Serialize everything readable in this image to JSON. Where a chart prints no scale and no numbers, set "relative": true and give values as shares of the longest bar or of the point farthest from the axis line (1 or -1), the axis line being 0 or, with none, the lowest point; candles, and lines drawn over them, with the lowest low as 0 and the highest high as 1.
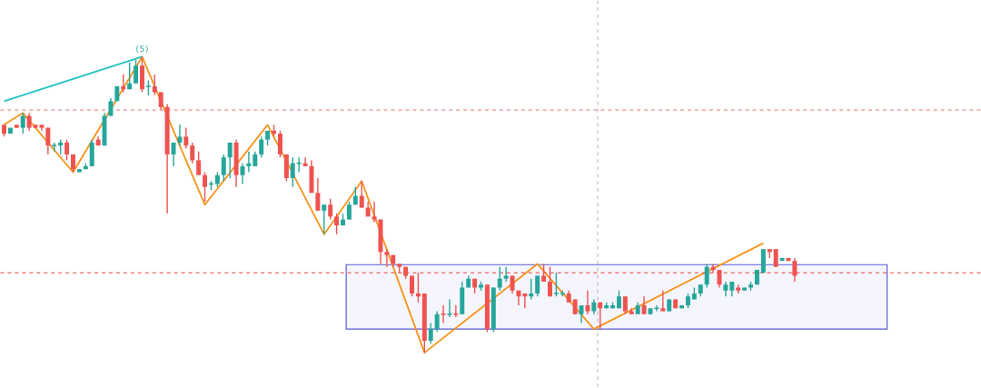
{
  "chart_data": [
    {
      "type": "candlestick",
      "relative": true,
      "categories": [
        null,
        null,
        null,
        null,
        null,
        null,
        null,
        null,
        null,
        null,
        null,
        null,
        null,
        null,
        null,
        null,
        null,
        null,
        null,
        null,
        null,
        null,
        null,
        null,
        null,
        null,
        null,
        null,
        null,
        null,
        null,
        null,
        null,
        null,
        null,
        null,
        null,
        null,
        null,
        null,
        null,
        null,
        null,
        null,
        null,
        null,
        null,
        null,
        null,
        null,
        null,
        null,
        null,
        null,
        null,
        null,
        null,
        null,
        null,
        null,
        null,
        null,
        null,
        null,
        null,
        null,
        null,
        null,
        null,
        null,
        null,
        null,
        null,
        null,
        null,
        null,
        null,
        null,
        null,
        null,
        null,
        null,
        null,
        null,
        null,
        null,
        null,
        null,
        null,
        null,
        null,
        null,
        null,
        null,
        null,
        null,
        null,
        null,
        null,
        null,
        null,
        null,
        null,
        null,
        null,
        null,
        null,
        null,
        null,
        null,
        null,
        null,
        null,
        null,
        null,
        null,
        null,
        null,
        null,
        null,
        null,
        null,
        null,
        null,
        null,
        null,
        null
      ],
      "colors": [
        "#ef5350",
        "#26a69a",
        "#ef5350",
        "#26a69a",
        "#ef5350",
        "#ef5350",
        "#ef5350",
        "#ef5350",
        "#26a69a",
        "#26a69a",
        "#ef5350",
        "#ef5350",
        "#26a69a",
        "#26a69a",
        "#26a69a",
        "#ef5350",
        "#26a69a",
        "#26a69a",
        "#26a69a",
        "#ef5350",
        "#26a69a",
        "#26a69a",
        "#ef5350",
        "#26a69a",
        "#ef5350",
        "#ef5350",
        "#ef5350",
        "#26a69a",
        "#26a69a",
        "#ef5350",
        "#ef5350",
        "#ef5350",
        "#ef5350",
        "#26a69a",
        "#26a69a",
        "#26a69a",
        "#26a69a",
        "#ef5350",
        "#26a69a",
        "#26a69a",
        "#26a69a",
        "#26a69a",
        "#26a69a",
        "#ef5350",
        "#ef5350",
        "#ef5350",
        "#26a69a",
        "#26a69a",
        "#ef5350",
        "#ef5350",
        "#ef5350",
        "#26a69a",
        "#ef5350",
        "#ef5350",
        "#26a69a",
        "#26a69a",
        "#26a69a",
        "#ef5350",
        "#ef5350",
        "#ef5350",
        "#ef5350",
        "#ef5350",
        "#ef5350",
        "#ef5350",
        "#ef5350",
        "#ef5350",
        "#ef5350",
        "#ef5350",
        "#26a69a",
        "#26a69a",
        "#ef5350",
        "#26a69a",
        "#ef5350",
        "#26a69a",
        "#26a69a",
        "#ef5350",
        "#26a69a",
        "#ef5350",
        "#26a69a",
        "#26a69a",
        "#26a69a",
        "#ef5350",
        "#ef5350",
        "#ef5350",
        "#26a69a",
        "#26a69a",
        "#ef5350",
        "#ef5350",
        "#26a69a",
        "#26a69a",
        "#ef5350",
        "#ef5350",
        "#26a69a",
        "#ef5350",
        "#26a69a",
        "#ef5350",
        "#26a69a",
        "#26a69a",
        "#26a69a",
        "#ef5350",
        "#ef5350",
        "#26a69a",
        "#ef5350",
        "#26a69a",
        "#26a69a",
        "#ef5350",
        "#26a69a",
        "#ef5350",
        "#26a69a",
        "#26a69a",
        "#26a69a",
        "#26a69a",
        "#26a69a",
        "#ef5350",
        "#ef5350",
        "#26a69a",
        "#26a69a",
        "#ef5350",
        "#26a69a",
        "#26a69a",
        "#26a69a",
        "#26a69a",
        "#ef5350",
        "#ef5350",
        "#26a69a",
        "#ef5350",
        "#ef5350"
      ],
      "ohlc": [
        [
          0.77,
          0.77,
          0.73,
          0.74
        ],
        [
          0.74,
          0.76,
          0.74,
          0.76
        ],
        [
          0.77,
          0.77,
          0.76,
          0.76
        ],
        [
          0.76,
          0.81,
          0.74,
          0.8
        ],
        [
          0.8,
          0.81,
          0.75,
          0.76
        ],
        [
          0.77,
          0.77,
          0.76,
          0.76
        ],
        [
          0.77,
          0.77,
          0.75,
          0.76
        ],
        [
          0.76,
          0.76,
          0.67,
          0.7
        ],
        [
          0.7,
          0.71,
          0.68,
          0.7
        ],
        [
          0.7,
          0.72,
          0.67,
          0.71
        ],
        [
          0.71,
          0.72,
          0.65,
          0.67
        ],
        [
          0.67,
          0.67,
          0.61,
          0.62
        ],
        [
          0.61,
          0.62,
          0.61,
          0.62
        ],
        [
          0.62,
          0.64,
          0.62,
          0.63
        ],
        [
          0.63,
          0.72,
          0.63,
          0.71
        ],
        [
          0.72,
          0.73,
          0.7,
          0.7
        ],
        [
          0.7,
          0.81,
          0.7,
          0.8
        ],
        [
          0.8,
          0.86,
          0.8,
          0.85
        ],
        [
          0.85,
          0.9,
          0.85,
          0.9
        ],
        [
          0.9,
          0.94,
          0.88,
          0.89
        ],
        [
          0.89,
          0.98,
          0.89,
          0.91
        ],
        [
          0.91,
          0.99,
          0.91,
          0.97
        ],
        [
          0.97,
          1.0,
          0.88,
          0.89
        ],
        [
          0.9,
          0.92,
          0.87,
          0.9
        ],
        [
          0.9,
          0.94,
          0.87,
          0.88
        ],
        [
          0.88,
          0.88,
          0.82,
          0.83
        ],
        [
          0.83,
          0.84,
          0.47,
          0.67
        ],
        [
          0.67,
          0.71,
          0.63,
          0.71
        ],
        [
          0.71,
          0.77,
          0.7,
          0.73
        ],
        [
          0.73,
          0.76,
          0.69,
          0.7
        ],
        [
          0.7,
          0.71,
          0.64,
          0.65
        ],
        [
          0.65,
          0.68,
          0.6,
          0.6
        ],
        [
          0.6,
          0.61,
          0.51,
          0.56
        ],
        [
          0.57,
          0.58,
          0.55,
          0.57
        ],
        [
          0.57,
          0.61,
          0.56,
          0.6
        ],
        [
          0.6,
          0.67,
          0.58,
          0.66
        ],
        [
          0.66,
          0.71,
          0.59,
          0.71
        ],
        [
          0.71,
          0.72,
          0.56,
          0.6
        ],
        [
          0.6,
          0.64,
          0.57,
          0.63
        ],
        [
          0.63,
          0.68,
          0.61,
          0.64
        ],
        [
          0.63,
          0.68,
          0.63,
          0.67
        ],
        [
          0.67,
          0.73,
          0.66,
          0.72
        ],
        [
          0.72,
          0.75,
          0.7,
          0.75
        ],
        [
          0.75,
          0.77,
          0.73,
          0.74
        ],
        [
          0.74,
          0.75,
          0.66,
          0.67
        ],
        [
          0.67,
          0.67,
          0.58,
          0.59
        ],
        [
          0.59,
          0.66,
          0.56,
          0.64
        ],
        [
          0.64,
          0.66,
          0.61,
          0.64
        ],
        [
          0.64,
          0.66,
          0.63,
          0.63
        ],
        [
          0.63,
          0.65,
          0.54,
          0.54
        ],
        [
          0.54,
          0.59,
          0.48,
          0.48
        ],
        [
          0.48,
          0.5,
          0.4,
          0.5
        ],
        [
          0.5,
          0.52,
          0.45,
          0.46
        ],
        [
          0.46,
          0.47,
          0.4,
          0.43
        ],
        [
          0.43,
          0.47,
          0.43,
          0.45
        ],
        [
          0.45,
          0.51,
          0.45,
          0.5
        ],
        [
          0.5,
          0.56,
          0.5,
          0.53
        ],
        [
          0.53,
          0.58,
          0.49,
          0.49
        ],
        [
          0.49,
          0.51,
          0.46,
          0.46
        ],
        [
          0.46,
          0.51,
          0.44,
          0.45
        ],
        [
          0.45,
          0.45,
          0.3,
          0.34
        ],
        [
          0.34,
          0.35,
          0.29,
          0.33
        ],
        [
          0.33,
          0.33,
          0.29,
          0.3
        ],
        [
          0.3,
          0.3,
          0.27,
          0.29
        ],
        [
          0.29,
          0.29,
          0.25,
          0.26
        ],
        [
          0.26,
          0.26,
          0.19,
          0.2
        ],
        [
          0.2,
          0.27,
          0.17,
          0.19
        ],
        [
          0.2,
          0.2,
          0,
          0.04
        ],
        [
          0.04,
          0.1,
          0.03,
          0.08
        ],
        [
          0.08,
          0.14,
          0.07,
          0.13
        ],
        [
          0.13,
          0.16,
          0.1,
          0.13
        ],
        [
          0.13,
          0.18,
          0.12,
          0.13
        ],
        [
          0.13,
          0.16,
          0.12,
          0.13
        ],
        [
          0.13,
          0.24,
          0.13,
          0.22
        ],
        [
          0.22,
          0.26,
          0.22,
          0.25
        ],
        [
          0.25,
          0.25,
          0.2,
          0.22
        ],
        [
          0.22,
          0.24,
          0.21,
          0.23
        ],
        [
          0.23,
          0.23,
          0.07,
          0.08
        ],
        [
          0.08,
          0.22,
          0.07,
          0.22
        ],
        [
          0.22,
          0.29,
          0.21,
          0.25
        ],
        [
          0.25,
          0.29,
          0.24,
          0.26
        ],
        [
          0.26,
          0.26,
          0.2,
          0.21
        ],
        [
          0.21,
          0.21,
          0.16,
          0.19
        ],
        [
          0.2,
          0.2,
          0.15,
          0.19
        ],
        [
          0.19,
          0.25,
          0.18,
          0.2
        ],
        [
          0.2,
          0.26,
          0.19,
          0.26
        ],
        [
          0.26,
          0.3,
          0.24,
          0.24
        ],
        [
          0.24,
          0.29,
          0.19,
          0.19
        ],
        [
          0.2,
          0.27,
          0.19,
          0.2
        ],
        [
          0.2,
          0.21,
          0.19,
          0.2
        ],
        [
          0.2,
          0.21,
          0.17,
          0.17
        ],
        [
          0.18,
          0.18,
          0.13,
          0.13
        ],
        [
          0.13,
          0.16,
          0.1,
          0.16
        ],
        [
          0.16,
          0.21,
          0.13,
          0.14
        ],
        [
          0.14,
          0.18,
          0.13,
          0.17
        ],
        [
          0.17,
          0.17,
          0.08,
          0.15
        ],
        [
          0.15,
          0.17,
          0.15,
          0.16
        ],
        [
          0.15,
          0.17,
          0.15,
          0.16
        ],
        [
          0.15,
          0.21,
          0.15,
          0.19
        ],
        [
          0.19,
          0.19,
          0.13,
          0.14
        ],
        [
          0.14,
          0.15,
          0.13,
          0.13
        ],
        [
          0.13,
          0.17,
          0.13,
          0.16
        ],
        [
          0.16,
          0.19,
          0.13,
          0.13
        ],
        [
          0.13,
          0.15,
          0.13,
          0.15
        ],
        [
          0.15,
          0.16,
          0.14,
          0.15
        ],
        [
          0.15,
          0.21,
          0.14,
          0.14
        ],
        [
          0.14,
          0.18,
          0.14,
          0.18
        ],
        [
          0.18,
          0.18,
          0.15,
          0.15
        ],
        [
          0.15,
          0.16,
          0.15,
          0.16
        ],
        [
          0.16,
          0.2,
          0.15,
          0.19
        ],
        [
          0.18,
          0.22,
          0.18,
          0.2
        ],
        [
          0.2,
          0.23,
          0.19,
          0.23
        ],
        [
          0.23,
          0.3,
          0.22,
          0.29
        ],
        [
          0.29,
          0.3,
          0.27,
          0.28
        ],
        [
          0.28,
          0.28,
          0.22,
          0.23
        ],
        [
          0.21,
          0.24,
          0.19,
          0.23
        ],
        [
          0.21,
          0.24,
          0.19,
          0.24
        ],
        [
          0.22,
          0.23,
          0.2,
          0.21
        ],
        [
          0.21,
          0.22,
          0.21,
          0.22
        ],
        [
          0.22,
          0.24,
          0.21,
          0.23
        ],
        [
          0.23,
          0.28,
          0.23,
          0.28
        ],
        [
          0.27,
          0.35,
          0.27,
          0.35
        ],
        [
          0.35,
          0.35,
          0.32,
          0.34
        ],
        [
          0.35,
          0.35,
          0.29,
          0.29
        ],
        [
          0.31,
          0.32,
          0.31,
          0.32
        ],
        [
          0.32,
          0.32,
          0.31,
          0.31
        ],
        [
          0.31,
          0.32,
          0.24,
          0.26
        ]
      ],
      "ref_lines": [
        {
          "axis": "y",
          "value": 0.82,
          "color": "#e57373",
          "line_style": "dashed"
        },
        {
          "axis": "y",
          "value": 0.27,
          "color": "#e53935",
          "line_style": "dashed"
        }
      ],
      "annotations": [
        "(5)"
      ]
    },
    {
      "type": "line",
      "relative": true,
      "categories": [
        null,
        null,
        null,
        null,
        null,
        null,
        null,
        null,
        null,
        null,
        null,
        null,
        null,
        null,
        null,
        null,
        null,
        null,
        null,
        null,
        null,
        null,
        null,
        null,
        null,
        null,
        null,
        null,
        null,
        null,
        null,
        null,
        null,
        null,
        null,
        null,
        null,
        null,
        null,
        null,
        null,
        null,
        null,
        null,
        null,
        null,
        null,
        null,
        null,
        null,
        null,
        null,
        null,
        null,
        null,
        null,
        null,
        null,
        null,
        null,
        null,
        null,
        null,
        null,
        null,
        null,
        null,
        null,
        null,
        null,
        null,
        null,
        null,
        null,
        null,
        null,
        null,
        null,
        null,
        null,
        null,
        null,
        null,
        null,
        null,
        null,
        null,
        null,
        null,
        null,
        null,
        null,
        null,
        null,
        null,
        null,
        null,
        null,
        null,
        null,
        null,
        null,
        null,
        null,
        null,
        null,
        null,
        null,
        null,
        null,
        null,
        null,
        null,
        null,
        null,
        null,
        null,
        null,
        null,
        null,
        null,
        null,
        null,
        null,
        null,
        null,
        null
      ],
      "series": [
        {
          "color": "#f7931a",
          "values": [
            0.77,
            null,
            null,
            0.81,
            null,
            null,
            null,
            null,
            null,
            null,
            null,
            0.61,
            null,
            null,
            null,
            null,
            null,
            null,
            null,
            null,
            null,
            null,
            1.0,
            null,
            null,
            null,
            null,
            null,
            null,
            null,
            null,
            null,
            0.5,
            null,
            null,
            null,
            null,
            null,
            null,
            null,
            null,
            null,
            0.77,
            null,
            null,
            null,
            null,
            null,
            null,
            null,
            null,
            0.4,
            null,
            null,
            null,
            null,
            null,
            0.58,
            null,
            null,
            null,
            null,
            null,
            null,
            null,
            null,
            null,
            0,
            null,
            null,
            null,
            null,
            null,
            null,
            null,
            null,
            null,
            null,
            null,
            null,
            null,
            null,
            null,
            null,
            null,
            0.3,
            null,
            null,
            null,
            null,
            null,
            null,
            null,
            null,
            0.08,
            null,
            null,
            null,
            null,
            null,
            null,
            null,
            null,
            null,
            null,
            null,
            null,
            null,
            null,
            null,
            null,
            null,
            null,
            null,
            null,
            null,
            null,
            null,
            null,
            null,
            null,
            0.37,
            null,
            null,
            null,
            null,
            null
          ]
        },
        {
          "color": "#22c3c3",
          "values": [
            0.85,
            null,
            null,
            null,
            null,
            null,
            null,
            null,
            null,
            null,
            null,
            null,
            null,
            null,
            null,
            null,
            null,
            null,
            null,
            null,
            null,
            null,
            1.0,
            null,
            null,
            null,
            null,
            null,
            null,
            null,
            null,
            null,
            null,
            null,
            null,
            null,
            null,
            null,
            null,
            null,
            null,
            null,
            null,
            null,
            null,
            null,
            null,
            null,
            null,
            null,
            null,
            null,
            null,
            null,
            null,
            null,
            null,
            null,
            null,
            null,
            null,
            null,
            null,
            null,
            null,
            null,
            null,
            null,
            null,
            null,
            null,
            null,
            null,
            null,
            null,
            null,
            null,
            null,
            null,
            null,
            null,
            null,
            null,
            null,
            null,
            null,
            null,
            null,
            null,
            null,
            null,
            null,
            null,
            null,
            null,
            null,
            null,
            null,
            null,
            null,
            null,
            null,
            null,
            null,
            null,
            null,
            null,
            null,
            null,
            null,
            null,
            null,
            null,
            null,
            null,
            null,
            null,
            null,
            null,
            null,
            null,
            null,
            null,
            null,
            null,
            null,
            null
          ]
        }
      ]
    }
  ]
}
